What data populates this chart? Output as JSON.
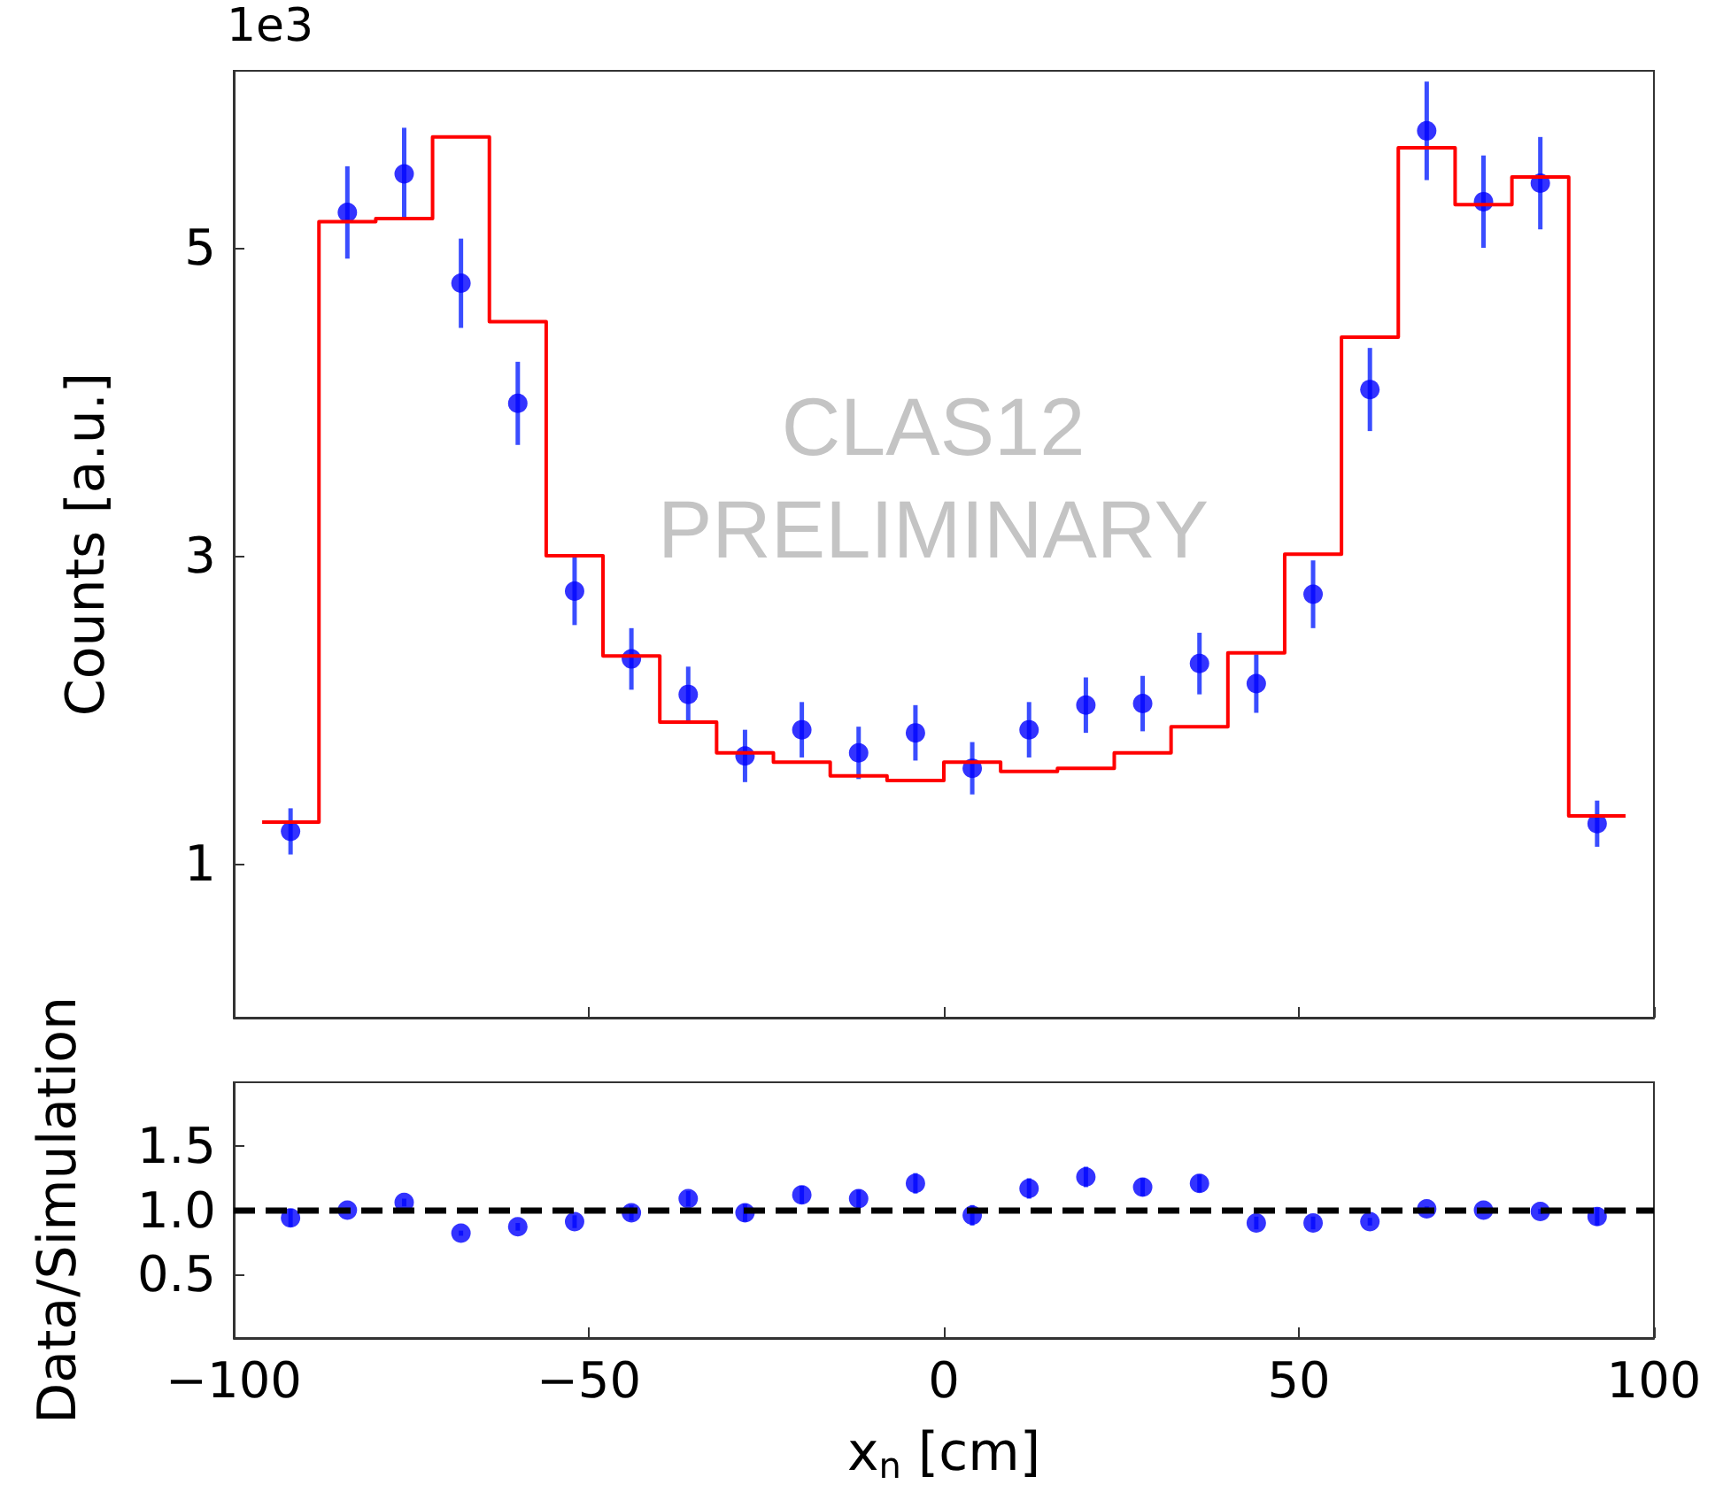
{
  "chart_data": [
    {
      "type": "histogram",
      "ylabel": "Counts [a.u.]",
      "annotations": [
        "1e3",
        "CLAS12",
        "PRELIMINARY"
      ],
      "xlim": [
        -100,
        100
      ],
      "xticks": [
        -100,
        -50,
        0,
        50,
        100
      ],
      "ylim": [
        0,
        6.15
      ],
      "yticks": [
        1,
        3,
        5
      ],
      "tick_labels": "y",
      "grid": false,
      "series": [
        {
          "color": "#ff0000",
          "bins": [
            -96,
            -88,
            -80,
            -72,
            -64,
            -56,
            -48,
            -40,
            -32,
            -24,
            -16,
            -8,
            0,
            8,
            16,
            24,
            32,
            40,
            48,
            56,
            64,
            72,
            80,
            88,
            96
          ],
          "values": [
            1.27,
            5.17,
            5.19,
            5.72,
            4.52,
            3.0,
            2.35,
            1.92,
            1.72,
            1.66,
            1.57,
            1.54,
            1.66,
            1.6,
            1.62,
            1.72,
            1.89,
            2.37,
            3.01,
            4.42,
            5.65,
            5.28,
            5.46,
            1.31
          ]
        },
        {
          "type": "scatter",
          "color": "#0000ff",
          "marker": "circle",
          "x": [
            -92,
            -84,
            -76,
            -68,
            -60,
            -52,
            -44,
            -36,
            -28,
            -20,
            -12,
            -4,
            4,
            12,
            20,
            28,
            36,
            44,
            52,
            60,
            68,
            76,
            84,
            92
          ],
          "values": [
            1.21,
            5.23,
            5.48,
            4.77,
            3.99,
            2.77,
            2.33,
            2.1,
            1.7,
            1.87,
            1.72,
            1.85,
            1.62,
            1.87,
            2.03,
            2.04,
            2.3,
            2.17,
            2.75,
            4.08,
            5.76,
            5.3,
            5.42,
            1.26
          ],
          "errors": [
            0.15,
            0.3,
            0.3,
            0.29,
            0.27,
            0.22,
            0.2,
            0.18,
            0.17,
            0.18,
            0.17,
            0.18,
            0.17,
            0.18,
            0.18,
            0.18,
            0.2,
            0.19,
            0.22,
            0.27,
            0.32,
            0.3,
            0.3,
            0.15
          ]
        }
      ]
    },
    {
      "type": "scatter",
      "xlabel": "x$_{n}$ [cm]",
      "ylabel": "Data/Simulation",
      "xlim": [
        -100,
        100
      ],
      "xticks": [
        {
          "value": -100,
          "label": "−100"
        },
        {
          "value": -50,
          "label": "−50"
        },
        0,
        50,
        100
      ],
      "ylim": [
        0,
        2
      ],
      "yticks": [
        0.5,
        {
          "value": 1,
          "label": "1.0"
        },
        1.5
      ],
      "grid": false,
      "ref_lines": [
        {
          "axis": "y",
          "value": 1,
          "color": "#000000",
          "line_style": "dashed"
        }
      ],
      "series": [
        {
          "color": "#0000ff",
          "marker": "circle",
          "x": [
            -92,
            -84,
            -76,
            -68,
            -60,
            -52,
            -44,
            -36,
            -28,
            -20,
            -12,
            -4,
            4,
            12,
            20,
            28,
            36,
            44,
            52,
            60,
            68,
            76,
            84,
            92
          ],
          "values": [
            0.94,
            1.0,
            1.06,
            0.82,
            0.87,
            0.91,
            0.98,
            1.09,
            0.98,
            1.12,
            1.09,
            1.21,
            0.96,
            1.17,
            1.26,
            1.18,
            1.21,
            0.9,
            0.9,
            0.91,
            1.01,
            1.0,
            0.99,
            0.95
          ],
          "errors": [
            0.07,
            0.02,
            0.03,
            0.02,
            0.03,
            0.05,
            0.06,
            0.06,
            0.07,
            0.07,
            0.07,
            0.08,
            0.08,
            0.08,
            0.08,
            0.07,
            0.07,
            0.05,
            0.05,
            0.03,
            0.02,
            0.02,
            0.02,
            0.07
          ]
        }
      ]
    }
  ]
}
